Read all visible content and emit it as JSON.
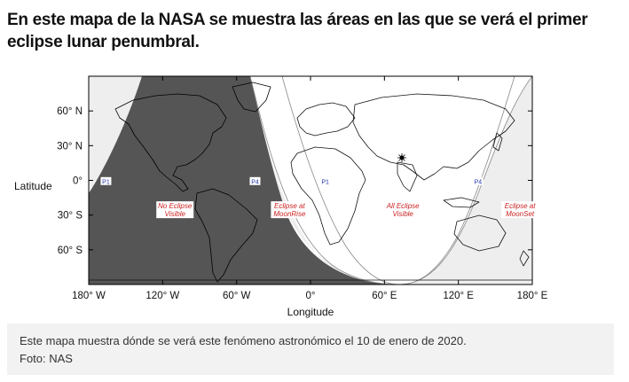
{
  "headline": {
    "line1": "En este mapa de la NASA se muestra las áreas en las que se verá el primer",
    "line2": "eclipse lunar penumbral."
  },
  "map": {
    "lon_range": [
      -180,
      180
    ],
    "lat_range": [
      -90,
      90
    ],
    "x_ticks": [
      {
        "value": -180,
        "label": "180° W"
      },
      {
        "value": -120,
        "label": "120° W"
      },
      {
        "value": -60,
        "label": "60° W"
      },
      {
        "value": 0,
        "label": "0°"
      },
      {
        "value": 60,
        "label": "60° E"
      },
      {
        "value": 120,
        "label": "120° E"
      },
      {
        "value": 180,
        "label": "180° E"
      }
    ],
    "y_ticks": [
      {
        "value": 60,
        "label": "60° N"
      },
      {
        "value": 30,
        "label": "30° N"
      },
      {
        "value": 0,
        "label": "0°"
      },
      {
        "value": -30,
        "label": "30° S"
      },
      {
        "value": -60,
        "label": "60° S"
      }
    ],
    "xlabel": "Longitude",
    "ylabel": "Latitude",
    "zones": [
      {
        "line1": "No Eclipse",
        "line2": "Visible",
        "lon": -110,
        "lat": -25,
        "color": "#cc2222"
      },
      {
        "line1": "Eclipse at",
        "line2": "MoonRise",
        "lon": -17,
        "lat": -25,
        "color": "#cc2222"
      },
      {
        "line1": "All Eclipse",
        "line2": "Visible",
        "lon": 75,
        "lat": -25,
        "color": "#cc2222"
      },
      {
        "line1": "Eclipse at",
        "line2": "MoonSet",
        "lon": 170,
        "lat": -25,
        "color": "#cc2222"
      }
    ],
    "contacts": [
      {
        "label": "P1",
        "lon": -166,
        "lat": -1
      },
      {
        "label": "P4",
        "lon": -45,
        "lat": -1
      },
      {
        "label": "P1",
        "lon": 12,
        "lat": -1
      },
      {
        "label": "P4",
        "lon": 136,
        "lat": -1
      }
    ],
    "colors": {
      "no_eclipse": "#555555",
      "partial": "#eeeeee",
      "full": "#ffffff"
    }
  },
  "caption": {
    "line1": "Este mapa muestra dónde se verá este fenómeno astronómico el 10 de enero de 2020.",
    "line2": "Foto: NAS"
  }
}
